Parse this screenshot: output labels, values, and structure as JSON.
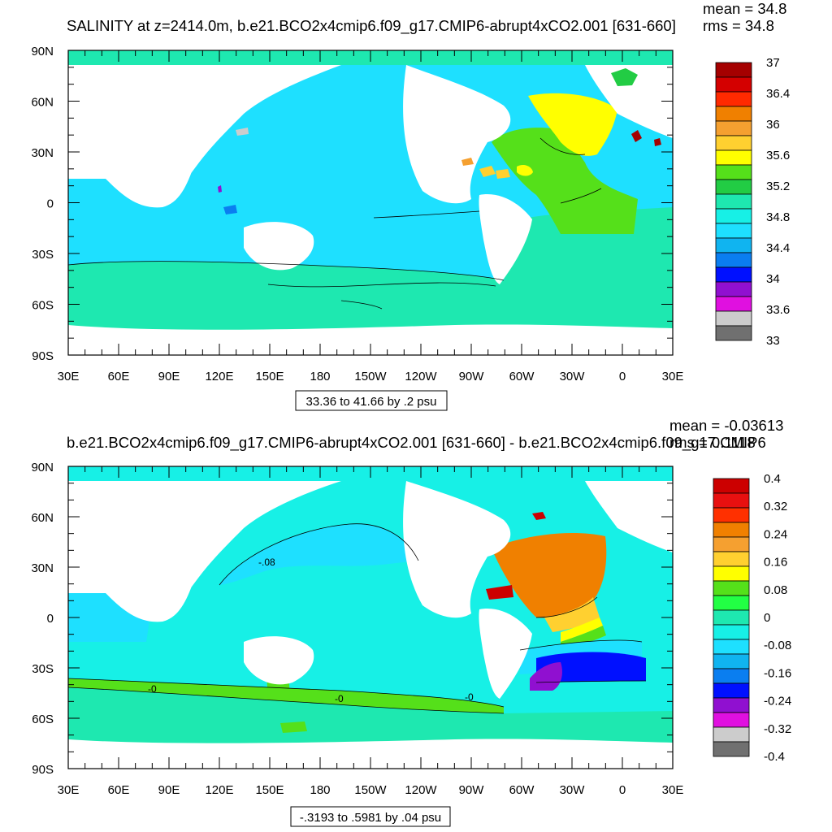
{
  "chart_data": [
    {
      "type": "heatmap",
      "title": "SALINITY at z=2414.0m, b.e21.BCO2x4cmip6.f09_g17.CMIP6-abrupt4xCO2.001 [631-660]",
      "stats": [
        "mean = 34.8",
        "rms = 34.8"
      ],
      "x_ticks": [
        "30E",
        "60E",
        "90E",
        "120E",
        "150E",
        "180",
        "150W",
        "120W",
        "90W",
        "60W",
        "30W",
        "0",
        "30E"
      ],
      "y_ticks": [
        "90N",
        "60N",
        "30N",
        "0",
        "30S",
        "60S",
        "90S"
      ],
      "info_box": "33.36 to 41.66 by .2 psu",
      "colorbar": {
        "labels": [
          "37",
          "36.4",
          "36",
          "35.6",
          "35.2",
          "34.8",
          "34.4",
          "34",
          "33.6",
          "33"
        ],
        "colors": [
          "#a50000",
          "#d40000",
          "#ff2a00",
          "#f08000",
          "#f5a030",
          "#ffd030",
          "#ffff00",
          "#55e01a",
          "#22cc44",
          "#1ee8b0",
          "#17f0e6",
          "#1ee0ff",
          "#10b4f0",
          "#0a7ef0",
          "#0010ff",
          "#9010d0",
          "#e010e0",
          "#cccccc",
          "#707070"
        ]
      },
      "regions": {
        "background_value": "34.8",
        "southern_band_value": "34.8",
        "pacific_value": "34.6",
        "north_atlantic_value": "35.1",
        "subtropical_atlantic_value": "35.4",
        "south_atlantic_value": "34.8",
        "mediterranean_value": "36.8"
      }
    },
    {
      "type": "heatmap",
      "title": "b.e21.BCO2x4cmip6.f09_g17.CMIP6-abrupt4xCO2.001 [631-660] - b.e21.BCO2x4cmip6.f09_g17.CMIP6",
      "stats": [
        "mean = -0.03613",
        "rms = 0.1118"
      ],
      "x_ticks": [
        "30E",
        "60E",
        "90E",
        "120E",
        "150E",
        "180",
        "150W",
        "120W",
        "90W",
        "60W",
        "30W",
        "0",
        "30E"
      ],
      "y_ticks": [
        "90N",
        "60N",
        "30N",
        "0",
        "30S",
        "60S",
        "90S"
      ],
      "info_box": "-.3193 to .5981 by .04 psu",
      "contour_labels": [
        "-.08",
        "-0",
        "-0",
        "-0"
      ],
      "colorbar": {
        "labels": [
          "0.4",
          "0.32",
          "0.24",
          "0.16",
          "0.08",
          "0",
          "-0.08",
          "-0.16",
          "-0.24",
          "-0.32",
          "-0.4"
        ],
        "colors": [
          "#cc0000",
          "#e81010",
          "#ff3000",
          "#f08000",
          "#f5a030",
          "#ffd030",
          "#ffff00",
          "#55e01a",
          "#22ff44",
          "#1ee8b0",
          "#17f0e6",
          "#1ee0ff",
          "#10b4f0",
          "#0a7ef0",
          "#0010ff",
          "#9010d0",
          "#e010e0",
          "#cccccc",
          "#707070"
        ]
      },
      "regions": {
        "background_value": "-0.04",
        "pacific_north_value": "-0.1",
        "north_atlantic_value": "0.2",
        "south_atlantic_value": "-0.22",
        "southern_band_value": "0.0"
      }
    }
  ]
}
